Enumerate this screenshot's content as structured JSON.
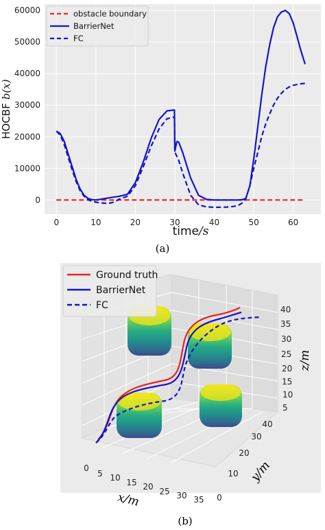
{
  "captions": {
    "a": "(a)",
    "b": "(b)"
  },
  "chart_data": [
    {
      "type": "line",
      "title": "",
      "xlabel_text": "time",
      "xlabel_unit": "/s",
      "ylabel_text": "HOCBF",
      "ylabel_math": "b(x)",
      "xlim": [
        -3,
        67
      ],
      "ylim": [
        -4500,
        62000
      ],
      "xticks": [
        0,
        10,
        20,
        30,
        40,
        50,
        60
      ],
      "yticks": [
        0,
        10000,
        20000,
        30000,
        40000,
        50000,
        60000
      ],
      "grid": true,
      "legend_position": "top-left",
      "series": [
        {
          "name": "obstacle boundary",
          "style": "dashed",
          "color": "#e8231f",
          "x": [
            0,
            63
          ],
          "y": [
            0,
            0
          ]
        },
        {
          "name": "BarrierNet",
          "style": "solid",
          "color": "#1414c8",
          "x": [
            0,
            1,
            2,
            3,
            4,
            5,
            6,
            7,
            8,
            9,
            10,
            12,
            14,
            16,
            18,
            20,
            22,
            24,
            26,
            28,
            29.9,
            30.0,
            30.5,
            31,
            32,
            34,
            36,
            38,
            40,
            42,
            44,
            46,
            47,
            48,
            49,
            50,
            51,
            52,
            53,
            54,
            55,
            56,
            57,
            58,
            59,
            60,
            61,
            62,
            63
          ],
          "y": [
            21800,
            21000,
            18500,
            14500,
            10500,
            6500,
            3500,
            1500,
            500,
            100,
            0,
            400,
            800,
            1200,
            1800,
            5500,
            12000,
            19500,
            25500,
            28200,
            28500,
            15500,
            18500,
            18300,
            15000,
            7000,
            1500,
            200,
            0,
            0,
            0,
            0,
            80,
            500,
            4500,
            13000,
            23000,
            33000,
            42000,
            49000,
            54500,
            58000,
            59500,
            60000,
            59000,
            56000,
            51500,
            47000,
            43000
          ]
        },
        {
          "name": "FC",
          "style": "dashed",
          "color": "#1414c8",
          "x": [
            0,
            1,
            2,
            3,
            4,
            5,
            6,
            7,
            8,
            9,
            10,
            11,
            12,
            13,
            14,
            15,
            16,
            18,
            20,
            22,
            24,
            26,
            28,
            29.9,
            30.0,
            31,
            32,
            34,
            36,
            38,
            40,
            42,
            44,
            46,
            47,
            48,
            49,
            50,
            51,
            52,
            53,
            54,
            55,
            56,
            57,
            58,
            59,
            60,
            61,
            62,
            63
          ],
          "y": [
            21800,
            20500,
            17500,
            13500,
            9500,
            5800,
            3000,
            1200,
            100,
            -400,
            -700,
            -900,
            -1000,
            -1050,
            -900,
            -400,
            300,
            1200,
            4500,
            10500,
            17000,
            22500,
            25700,
            26300,
            15200,
            12500,
            8500,
            1500,
            -1500,
            -2200,
            -2300,
            -2300,
            -2200,
            -1800,
            -1000,
            500,
            4500,
            10000,
            15000,
            20000,
            24000,
            27200,
            30000,
            32200,
            33800,
            35000,
            35800,
            36300,
            36600,
            36800,
            36900
          ]
        }
      ]
    },
    {
      "type": "3d-trajectory",
      "title": "",
      "xlabel": "x/m",
      "ylabel": "y/m",
      "zlabel": "z/m",
      "xticks": [
        0,
        5,
        10,
        15,
        20,
        25,
        30,
        35
      ],
      "yticks": [
        0,
        10,
        20,
        30,
        40
      ],
      "zticks": [
        5,
        10,
        15,
        20,
        25,
        30,
        35,
        40
      ],
      "grid": true,
      "legend_position": "top-left",
      "series": [
        {
          "name": "Ground truth",
          "style": "solid",
          "color": "#e8231f"
        },
        {
          "name": "BarrierNet",
          "style": "solid",
          "color": "#1414c8"
        },
        {
          "name": "FC",
          "style": "dashed",
          "color": "#1414c8"
        }
      ],
      "obstacles_colormap": "viridis"
    }
  ]
}
